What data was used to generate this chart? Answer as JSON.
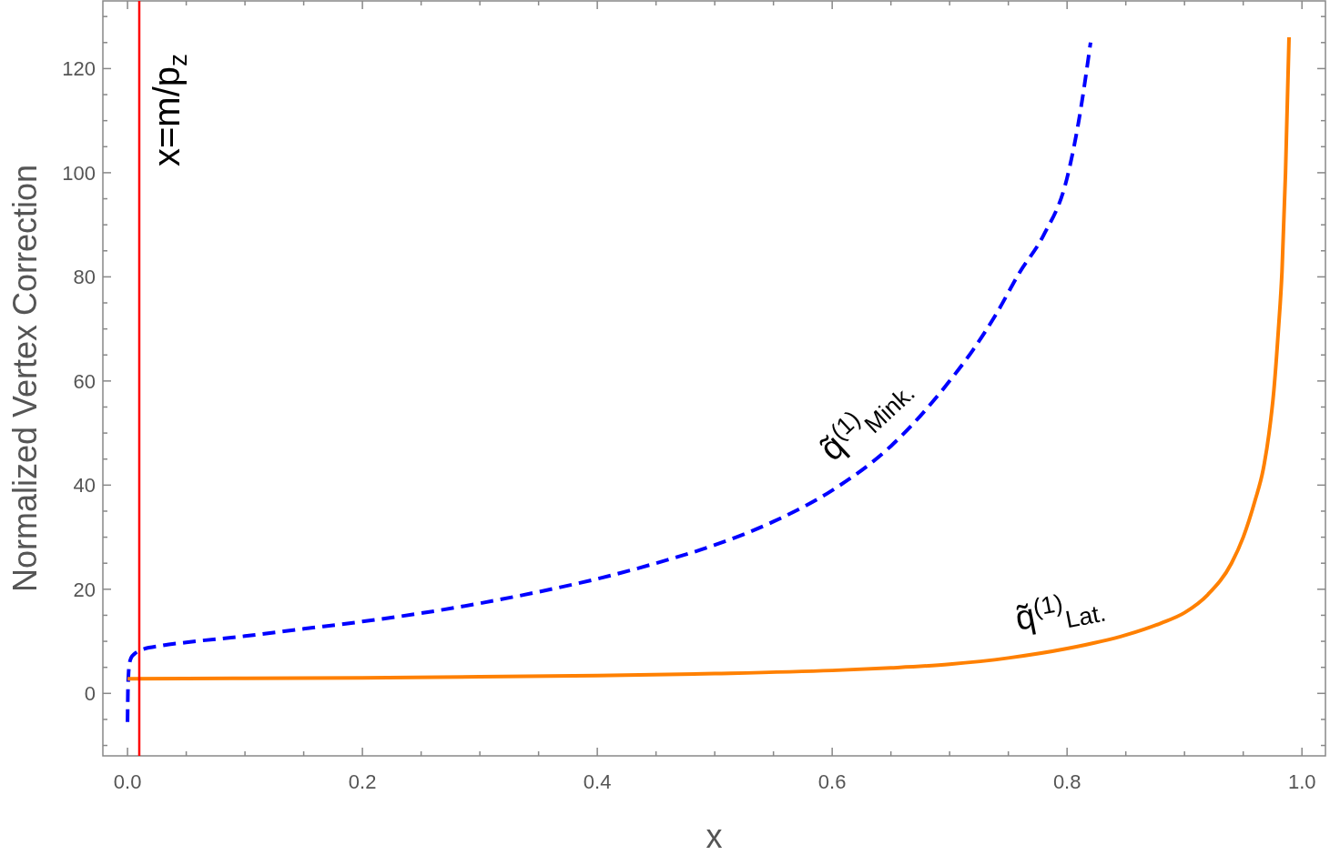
{
  "chart_data": {
    "type": "line",
    "xlabel": "x",
    "ylabel": "Normalized Vertex Correction",
    "xlim": [
      -0.021,
      1.02
    ],
    "ylim": [
      -12,
      133
    ],
    "xticks": [
      {
        "value": 0,
        "label": "0.0"
      },
      {
        "value": 0.05,
        "label": null
      },
      {
        "value": 0.1,
        "label": null
      },
      {
        "value": 0.15,
        "label": null
      },
      {
        "value": 0.2,
        "label": "0.2"
      },
      {
        "value": 0.25,
        "label": null
      },
      {
        "value": 0.3,
        "label": null
      },
      {
        "value": 0.35,
        "label": null
      },
      {
        "value": 0.4,
        "label": "0.4"
      },
      {
        "value": 0.45,
        "label": null
      },
      {
        "value": 0.5,
        "label": null
      },
      {
        "value": 0.55,
        "label": null
      },
      {
        "value": 0.6,
        "label": "0.6"
      },
      {
        "value": 0.65,
        "label": null
      },
      {
        "value": 0.7,
        "label": null
      },
      {
        "value": 0.75,
        "label": null
      },
      {
        "value": 0.8,
        "label": "0.8"
      },
      {
        "value": 0.85,
        "label": null
      },
      {
        "value": 0.9,
        "label": null
      },
      {
        "value": 0.95,
        "label": null
      },
      {
        "value": 1,
        "label": "1.0"
      }
    ],
    "yticks": [
      {
        "value": -10,
        "label": null
      },
      {
        "value": -5,
        "label": null
      },
      0,
      {
        "value": 5,
        "label": null
      },
      {
        "value": 10,
        "label": null
      },
      {
        "value": 15,
        "label": null
      },
      20,
      {
        "value": 25,
        "label": null
      },
      {
        "value": 30,
        "label": null
      },
      {
        "value": 35,
        "label": null
      },
      40,
      {
        "value": 45,
        "label": null
      },
      {
        "value": 50,
        "label": null
      },
      {
        "value": 55,
        "label": null
      },
      60,
      {
        "value": 65,
        "label": null
      },
      {
        "value": 70,
        "label": null
      },
      {
        "value": 75,
        "label": null
      },
      80,
      {
        "value": 85,
        "label": null
      },
      {
        "value": 90,
        "label": null
      },
      {
        "value": 95,
        "label": null
      },
      100,
      {
        "value": 105,
        "label": null
      },
      {
        "value": 110,
        "label": null
      },
      {
        "value": 115,
        "label": null
      },
      120,
      {
        "value": 125,
        "label": null
      },
      {
        "value": 130,
        "label": null
      }
    ],
    "grid": false,
    "series": [
      {
        "name": "q̃$^{(1)}$$_{Mink.}$",
        "color": "#0000ff",
        "line_style": "dashed",
        "x": [
          0,
          0.0003,
          0.0008,
          0.0015,
          0.003,
          0.006,
          0.01,
          0.03,
          0.05,
          0.1,
          0.15,
          0.2,
          0.25,
          0.3,
          0.35,
          0.4,
          0.45,
          0.5,
          0.55,
          0.6,
          0.65,
          0.7,
          0.72,
          0.74,
          0.76,
          0.78,
          0.8,
          0.81,
          0.82
        ],
        "values": [
          -5.5,
          0,
          3.5,
          5.5,
          6.8,
          7.6,
          8.2,
          9.2,
          9.8,
          11,
          12.4,
          13.8,
          15.4,
          17.3,
          19.5,
          22,
          25,
          28.5,
          33,
          39,
          47.5,
          60,
          66,
          73,
          81,
          88,
          99,
          110,
          125
        ]
      },
      {
        "name": "q̃$^{(1)}$$_{Lat.}$",
        "color": "#ff8000",
        "line_style": "solid",
        "x": [
          0,
          0.1,
          0.2,
          0.3,
          0.4,
          0.5,
          0.6,
          0.65,
          0.7,
          0.75,
          0.8,
          0.85,
          0.88,
          0.9,
          0.92,
          0.94,
          0.95,
          0.96,
          0.967,
          0.972,
          0.976,
          0.98,
          0.983,
          0.986,
          0.989
        ],
        "values": [
          2.8,
          2.9,
          3.0,
          3.2,
          3.4,
          3.8,
          4.4,
          4.9,
          5.6,
          6.8,
          8.6,
          11.2,
          13.5,
          15.5,
          19,
          25,
          30,
          37,
          43,
          50,
          58,
          70,
          81,
          100,
          126
        ]
      }
    ],
    "ref_lines": [
      {
        "axis": "x",
        "value": 0.01,
        "label": "x=m/p$_{z}$",
        "color": "#ff0000"
      }
    ]
  }
}
